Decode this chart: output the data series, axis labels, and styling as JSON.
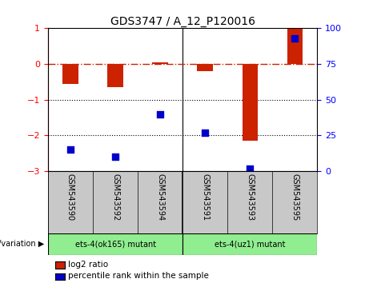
{
  "title": "GDS3747 / A_12_P120016",
  "samples": [
    "GSM543590",
    "GSM543592",
    "GSM543594",
    "GSM543591",
    "GSM543593",
    "GSM543595"
  ],
  "log2_ratio": [
    -0.55,
    -0.65,
    0.05,
    -0.2,
    -2.15,
    1.0
  ],
  "percentile_rank": [
    15,
    10,
    40,
    27,
    2,
    93
  ],
  "group1_label": "ets-4(ok165) mutant",
  "group2_label": "ets-4(uz1) mutant",
  "group_color": "#90EE90",
  "sample_bg_color": "#C8C8C8",
  "ylim_left": [
    -3,
    1
  ],
  "ylim_right": [
    0,
    100
  ],
  "yticks_left": [
    -3,
    -2,
    -1,
    0,
    1
  ],
  "yticks_right": [
    0,
    25,
    50,
    75,
    100
  ],
  "bar_color": "#CC2200",
  "dot_color": "#0000CC",
  "hline_color": "#CC2200",
  "dotted_lines": [
    -1,
    -2
  ],
  "bar_width": 0.35,
  "dot_size": 28,
  "title_fontsize": 10,
  "tick_fontsize": 8,
  "label_fontsize": 7,
  "legend_fontsize": 7.5
}
